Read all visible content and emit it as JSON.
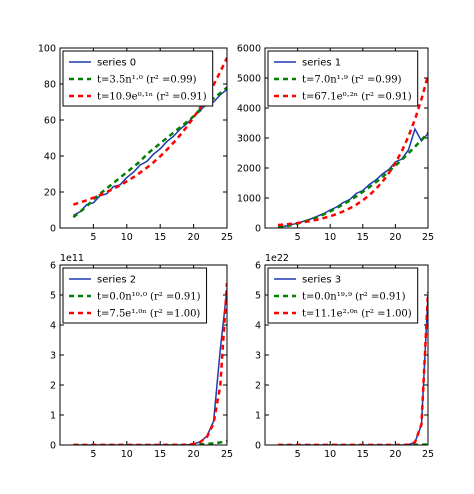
{
  "chart_data": [
    {
      "type": "line",
      "x": [
        2,
        3,
        4,
        5,
        6,
        7,
        8,
        9,
        10,
        11,
        12,
        13,
        14,
        15,
        16,
        17,
        18,
        19,
        20,
        21,
        22,
        23,
        24,
        25
      ],
      "xlim": [
        0,
        25
      ],
      "xticks": [
        5,
        10,
        15,
        20,
        25
      ],
      "ylim": [
        0,
        100
      ],
      "yticks": [
        0,
        20,
        40,
        60,
        80,
        100
      ],
      "series": [
        {
          "name": "series 0",
          "color": "#1f3ab0",
          "linestyle": "solid",
          "values": [
            7,
            9,
            13,
            14,
            18,
            19,
            23,
            24,
            28,
            31,
            35,
            37,
            41,
            44,
            48,
            51,
            55,
            58,
            62,
            65,
            70,
            70,
            74,
            77
          ]
        },
        {
          "name": "t=3.5n¹·⁰  (r² =0.99)",
          "color": "#008000",
          "linestyle": "dashed",
          "values": [
            6,
            9,
            12,
            16,
            19,
            22,
            25,
            28,
            31,
            34,
            37,
            41,
            44,
            47,
            50,
            53,
            56,
            59,
            62,
            66,
            69,
            72,
            75,
            78
          ]
        },
        {
          "name": "t=10.9e⁰·¹ⁿ  (r² =0.91)",
          "color": "#ff0000",
          "linestyle": "dashed",
          "values": [
            13,
            14.2,
            15.4,
            16.8,
            18.3,
            20,
            21.8,
            23.7,
            25.9,
            28.2,
            30.8,
            33.5,
            36.5,
            39.8,
            43.5,
            47.4,
            51.7,
            56.3,
            61.4,
            66.9,
            73,
            79.6,
            86.8,
            94.6
          ]
        }
      ]
    },
    {
      "type": "line",
      "x": [
        2,
        3,
        4,
        5,
        6,
        7,
        8,
        9,
        10,
        11,
        12,
        13,
        14,
        15,
        16,
        17,
        18,
        19,
        20,
        21,
        22,
        23,
        24,
        25
      ],
      "xlim": [
        0,
        25
      ],
      "xticks": [
        5,
        10,
        15,
        20,
        25
      ],
      "ylim": [
        0,
        6000
      ],
      "yticks": [
        0,
        1000,
        2000,
        3000,
        4000,
        5000,
        6000
      ],
      "series": [
        {
          "name": "series 1",
          "color": "#1f3ab0",
          "linestyle": "solid",
          "values": [
            30,
            60,
            110,
            160,
            230,
            300,
            390,
            480,
            600,
            700,
            850,
            950,
            1150,
            1250,
            1450,
            1600,
            1800,
            1950,
            2200,
            2300,
            2600,
            3300,
            2900,
            3150
          ]
        },
        {
          "name": "t=7.0n¹·⁹  (r² =0.99)",
          "color": "#008000",
          "linestyle": "dashed",
          "values": [
            26,
            56,
            97,
            149,
            211,
            282,
            364,
            455,
            556,
            667,
            787,
            917,
            1056,
            1204,
            1358,
            1526,
            1701,
            1890,
            2079,
            2275,
            2492,
            2709,
            2933,
            3171
          ]
        },
        {
          "name": "t=67.1e⁰·²ⁿ  (r² =0.91)",
          "color": "#ff0000",
          "linestyle": "dashed",
          "values": [
            100,
            119,
            141,
            167,
            198,
            235,
            279,
            331,
            393,
            466,
            553,
            656,
            778,
            923,
            1095,
            1299,
            1541,
            1828,
            2168,
            2572,
            3051,
            3619,
            4293,
            5093
          ]
        }
      ]
    },
    {
      "type": "line",
      "x": [
        2,
        3,
        4,
        5,
        6,
        7,
        8,
        9,
        10,
        11,
        12,
        13,
        14,
        15,
        16,
        17,
        18,
        19,
        20,
        21,
        22,
        23,
        24,
        25
      ],
      "xlim": [
        0,
        25
      ],
      "xticks": [
        5,
        10,
        15,
        20,
        25
      ],
      "ylim": [
        0,
        6
      ],
      "yticks": [
        0,
        1,
        2,
        3,
        4,
        5,
        6
      ],
      "y_offset_label": "1e11",
      "series": [
        {
          "name": "series 2",
          "color": "#1f3ab0",
          "linestyle": "solid",
          "values": [
            0,
            0,
            0,
            0,
            0,
            0,
            0,
            0,
            0,
            0,
            0,
            0,
            0,
            0,
            0,
            0,
            0,
            0,
            0.04,
            0.1,
            0.3,
            0.8,
            3.2,
            5.2
          ]
        },
        {
          "name": "t=0.0n¹⁰·⁰  (r² =0.91)",
          "color": "#008000",
          "linestyle": "dashed",
          "values": [
            0,
            0,
            0,
            0,
            0,
            0,
            0,
            0,
            0,
            0,
            0,
            0,
            0,
            0.0008,
            0.0015,
            0.003,
            0.005,
            0.008,
            0.014,
            0.023,
            0.036,
            0.056,
            0.086,
            0.13
          ]
        },
        {
          "name": "t=7.5e¹·⁰ⁿ  (r² =1.00)",
          "color": "#ff0000",
          "linestyle": "dashed",
          "values": [
            0,
            0,
            0,
            0,
            0,
            0,
            0,
            0,
            0,
            0,
            0,
            0,
            0,
            0,
            0,
            0,
            0.002,
            0.005,
            0.036,
            0.099,
            0.27,
            0.73,
            1.99,
            5.4
          ]
        }
      ]
    },
    {
      "type": "line",
      "x": [
        2,
        3,
        4,
        5,
        6,
        7,
        8,
        9,
        10,
        11,
        12,
        13,
        14,
        15,
        16,
        17,
        18,
        19,
        20,
        21,
        22,
        23,
        24,
        25
      ],
      "xlim": [
        0,
        25
      ],
      "xticks": [
        5,
        10,
        15,
        20,
        25
      ],
      "ylim": [
        0,
        6
      ],
      "yticks": [
        0,
        1,
        2,
        3,
        4,
        5,
        6
      ],
      "y_offset_label": "1e22",
      "series": [
        {
          "name": "series 3",
          "color": "#1f3ab0",
          "linestyle": "solid",
          "values": [
            0,
            0,
            0,
            0,
            0,
            0,
            0,
            0,
            0,
            0,
            0,
            0,
            0,
            0,
            0,
            0,
            0,
            0,
            0,
            0.002,
            0.012,
            0.09,
            0.68,
            5.0
          ]
        },
        {
          "name": "t=0.0n¹⁹·⁹  (r² =0.91)",
          "color": "#008000",
          "linestyle": "dashed",
          "values": [
            0,
            0,
            0,
            0,
            0,
            0,
            0,
            0,
            0,
            0,
            0,
            0,
            0,
            0,
            0,
            0,
            0,
            0,
            0,
            0,
            0.001,
            0.004,
            0.009,
            0.02
          ]
        },
        {
          "name": "t=11.1e²·⁰ⁿ  (r² =1.00)",
          "color": "#ff0000",
          "linestyle": "dashed",
          "values": [
            0,
            0,
            0,
            0,
            0,
            0,
            0,
            0,
            0,
            0,
            0,
            0,
            0,
            0,
            0,
            0,
            0,
            0,
            0,
            0.002,
            0.012,
            0.09,
            0.69,
            5.1
          ]
        }
      ]
    }
  ]
}
